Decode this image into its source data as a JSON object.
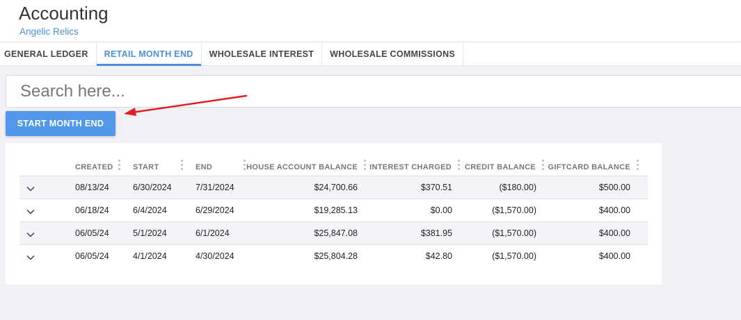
{
  "header": {
    "title": "Accounting",
    "subtitle": "Angelic Relics"
  },
  "tabs": [
    {
      "label": "GENERAL LEDGER",
      "active": false
    },
    {
      "label": "RETAIL MONTH END",
      "active": true
    },
    {
      "label": "WHOLESALE INTEREST",
      "active": false
    },
    {
      "label": "WHOLESALE COMMISSIONS",
      "active": false
    }
  ],
  "search": {
    "placeholder": "Search here...",
    "value": ""
  },
  "actions": {
    "start_month_end_label": "START MONTH END"
  },
  "annotation": {
    "arrow_color": "#e02020"
  },
  "table": {
    "columns": [
      "CREATED",
      "START",
      "END",
      "HOUSE ACCOUNT BALANCE",
      "INTEREST CHARGED",
      "CREDIT BALANCE",
      "GIFTCARD BALANCE"
    ],
    "rows": [
      {
        "created": "08/13/24",
        "start": "6/30/2024",
        "end": "7/31/2024",
        "house": "$24,700.66",
        "interest": "$370.51",
        "credit": "($180.00)",
        "giftcard": "$500.00"
      },
      {
        "created": "06/18/24",
        "start": "6/4/2024",
        "end": "6/29/2024",
        "house": "$19,285.13",
        "interest": "$0.00",
        "credit": "($1,570.00)",
        "giftcard": "$400.00"
      },
      {
        "created": "06/05/24",
        "start": "5/1/2024",
        "end": "6/1/2024",
        "house": "$25,847.08",
        "interest": "$381.95",
        "credit": "($1,570.00)",
        "giftcard": "$400.00"
      },
      {
        "created": "06/05/24",
        "start": "4/1/2024",
        "end": "4/30/2024",
        "house": "$25,804.28",
        "interest": "$42.80",
        "credit": "($1,570.00)",
        "giftcard": "$400.00"
      }
    ]
  },
  "colors": {
    "accent": "#4a8fde",
    "button": "#5198ea",
    "subtitle": "#4a90d9"
  }
}
